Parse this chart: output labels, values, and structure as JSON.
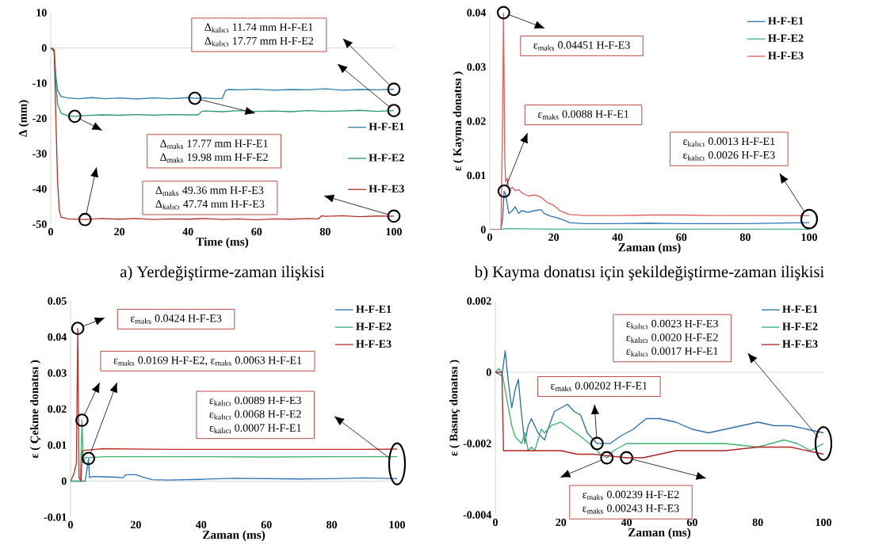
{
  "chart_data": [
    {
      "type": "line",
      "title": "a) Yerdeğiştirme-zaman ilişkisi",
      "xlabel": "Time (ms)",
      "ylabel": "Δ (mm)",
      "xlim": [
        0,
        100
      ],
      "ylim": [
        -50,
        10
      ],
      "xticks": [
        0,
        20,
        40,
        60,
        80,
        100
      ],
      "yticks": [
        -50,
        -40,
        -30,
        -20,
        -10,
        0,
        10
      ],
      "legend": "right",
      "ref_lines": [
        {
          "axis": "y",
          "value": 0,
          "color": "#d9d9d9"
        }
      ],
      "annotations": [
        "Δ$_{kalıcı}$ 11.74 mm H-F-E1",
        "Δ$_{kalıcı}$ 17.77 mm H-F-E2",
        "Δ$_{maks}$ 17.77 mm H-F-E1",
        "Δ$_{maks}$ 19.98 mm H-F-E2",
        "Δ$_{maks}$ 49.36 mm H-F-E3",
        "Δ$_{kalıcı}$ 47.74 mm H-F-E3"
      ],
      "series": [
        {
          "name": "H-F-E1",
          "color": "#2b83a8",
          "x": [
            0,
            1,
            1.5,
            2,
            3,
            5,
            8,
            12,
            16,
            20,
            25,
            30,
            35,
            40,
            42,
            45,
            48,
            50,
            51,
            52,
            55,
            60,
            65,
            70,
            75,
            80,
            85,
            90,
            95,
            100
          ],
          "values": [
            0,
            -1,
            -8,
            -12,
            -13.8,
            -14.2,
            -14.4,
            -14.1,
            -14.4,
            -14.2,
            -14.5,
            -14.2,
            -14.4,
            -14.1,
            -14.3,
            -14.2,
            -14.4,
            -14.3,
            -12.0,
            -11.8,
            -11.9,
            -11.7,
            -12.0,
            -11.8,
            -11.9,
            -11.6,
            -12.0,
            -11.8,
            -11.9,
            -11.74
          ]
        },
        {
          "name": "H-F-E2",
          "color": "#2a9d6a",
          "x": [
            0,
            1,
            1.5,
            2,
            3,
            5,
            7,
            10,
            15,
            20,
            25,
            30,
            35,
            40,
            43,
            44,
            45,
            50,
            55,
            60,
            65,
            70,
            75,
            80,
            85,
            90,
            95,
            100
          ],
          "values": [
            0,
            -0.5,
            -10,
            -16,
            -18.5,
            -19.3,
            -19.4,
            -19.2,
            -19.0,
            -19.1,
            -18.9,
            -19.1,
            -18.9,
            -19.0,
            -19.0,
            -18.0,
            -17.9,
            -18.1,
            -17.8,
            -18.0,
            -17.9,
            -18.1,
            -17.8,
            -18.0,
            -17.9,
            -17.7,
            -18.0,
            -17.77
          ]
        },
        {
          "name": "H-F-E3",
          "color": "#b5312b",
          "x": [
            0,
            1,
            1.5,
            2,
            2.5,
            3,
            5,
            10,
            15,
            20,
            25,
            30,
            35,
            40,
            45,
            50,
            55,
            60,
            65,
            70,
            75,
            78,
            79,
            80,
            85,
            90,
            95,
            100
          ],
          "values": [
            0,
            -0.5,
            -20,
            -38,
            -46,
            -48,
            -48.5,
            -48.7,
            -48.4,
            -48.6,
            -48.4,
            -48.7,
            -48.5,
            -48.6,
            -48.4,
            -48.7,
            -48.5,
            -48.8,
            -48.5,
            -48.6,
            -48.4,
            -48.5,
            -47.6,
            -47.8,
            -47.6,
            -47.9,
            -47.7,
            -47.74
          ]
        }
      ]
    },
    {
      "type": "line",
      "title": "b) Kayma donatısı için şekildeğiştirme-zaman ilişkisi",
      "xlabel": "Zaman (ms)",
      "ylabel": "ε ( Kayma donatısı )",
      "xlim": [
        0,
        100
      ],
      "ylim": [
        0,
        0.04
      ],
      "xticks": [
        0,
        20,
        40,
        60,
        80,
        100
      ],
      "yticks": [
        0,
        0.01,
        0.02,
        0.03,
        0.04
      ],
      "legend": "top right",
      "annotations": [
        "ε$_{maks}$ 0.04451 H-F-E3",
        "ε$_{maks}$ 0.0088 H-F-E1",
        "ε$_{kalıcı}$ 0.0013 H-F-E1",
        "ε$_{kalıcı}$ 0.0026 H-F-E3"
      ],
      "series": [
        {
          "name": "H-F-E1",
          "color": "#2e75b6",
          "x": [
            0,
            3.5,
            4,
            4.5,
            5,
            5.5,
            6,
            7,
            8,
            9,
            10,
            12,
            14,
            16,
            17,
            19,
            21,
            23,
            25,
            30,
            40,
            50,
            60,
            70,
            80,
            90,
            100
          ],
          "values": [
            0,
            0,
            0.002,
            0.0071,
            0.0065,
            0.0045,
            0.003,
            0.0035,
            0.0042,
            0.003,
            0.0035,
            0.0032,
            0.0035,
            0.0037,
            0.003,
            0.0025,
            0.0022,
            0.0018,
            0.0013,
            0.0011,
            0.0011,
            0.0012,
            0.0011,
            0.0011,
            0.0011,
            0.0012,
            0.0013
          ]
        },
        {
          "name": "H-F-E2",
          "color": "#43b58a",
          "x": [
            0,
            3.5,
            5,
            20,
            100
          ],
          "values": [
            0,
            0,
            0.0002,
            0.0001,
            0.0001
          ]
        },
        {
          "name": "H-F-E3",
          "color": "#e06060",
          "x": [
            0,
            3.5,
            4,
            4.3,
            4.7,
            5,
            5.5,
            6,
            7,
            8,
            9,
            10,
            12,
            14,
            16,
            18,
            20,
            22,
            25,
            30,
            40,
            50,
            60,
            70,
            80,
            90,
            100
          ],
          "values": [
            0,
            0,
            0.02,
            0.04,
            0.0127,
            0.0088,
            0.0095,
            0.0072,
            0.0078,
            0.0072,
            0.0074,
            0.0068,
            0.0062,
            0.0064,
            0.006,
            0.005,
            0.0045,
            0.0035,
            0.0028,
            0.0026,
            0.0026,
            0.0027,
            0.0027,
            0.0026,
            0.0026,
            0.0026,
            0.0026
          ]
        }
      ]
    },
    {
      "type": "line",
      "xlabel": "Zaman (ms)",
      "ylabel": "ε ( Çekme donatısı )",
      "xlim": [
        0,
        100
      ],
      "ylim": [
        -0.01,
        0.05
      ],
      "xticks": [
        0,
        20,
        40,
        60,
        80,
        100
      ],
      "yticks": [
        -0.01,
        0,
        0.01,
        0.02,
        0.03,
        0.04,
        0.05
      ],
      "legend": "top right",
      "ref_lines": [
        {
          "axis": "y",
          "value": 0,
          "color": "#d9d9d9"
        }
      ],
      "annotations": [
        "ε$_{maks}$ 0.0424 H-F-E3",
        "ε$_{maks}$ 0.0169 H-F-E2, ε$_{maks}$ 0.0063 H-F-E1",
        "ε$_{kalıcı}$ 0.0089 H-F-E3",
        "ε$_{kalıcı}$ 0.0068 H-F-E2",
        "ε$_{kalıcı}$ 0.0007 H-F-E1"
      ],
      "series": [
        {
          "name": "H-F-E1",
          "color": "#2e75b6",
          "x": [
            0,
            4.5,
            5,
            5.5,
            5.8,
            7,
            10,
            14,
            16,
            17,
            20,
            22,
            25,
            30,
            40,
            50,
            60,
            70,
            80,
            90,
            95,
            100
          ],
          "values": [
            0,
            0,
            0.003,
            0.0063,
            0.001,
            0.0013,
            0.0012,
            0.0011,
            0.0009,
            0.0018,
            0.0018,
            0.0012,
            0.0004,
            0.0003,
            0.0005,
            0.0008,
            0.0007,
            0.0006,
            0.0007,
            0.0009,
            0.0008,
            0.0007
          ]
        },
        {
          "name": "H-F-E2",
          "color": "#3cb371",
          "x": [
            0,
            3,
            3.3,
            3.5,
            3.9,
            4.5,
            6,
            10,
            20,
            40,
            60,
            80,
            100
          ],
          "values": [
            0,
            0,
            0.01,
            0.0169,
            0.005,
            0.0066,
            0.0065,
            0.0068,
            0.0068,
            0.0068,
            0.0067,
            0.0068,
            0.0068
          ]
        },
        {
          "name": "H-F-E3",
          "color": "#c0302b",
          "x": [
            0,
            1,
            1.8,
            2.2,
            2.6,
            3.2,
            3.6,
            6,
            10,
            20,
            30,
            40,
            50,
            60,
            70,
            80,
            90,
            100
          ],
          "values": [
            0,
            0.002,
            0.005,
            0.0424,
            0.001,
            0,
            0.0085,
            0.0087,
            0.009,
            0.0089,
            0.0088,
            0.0088,
            0.0088,
            0.0088,
            0.0088,
            0.0088,
            0.0088,
            0.0089
          ]
        }
      ]
    },
    {
      "type": "line",
      "xlabel": "Zaman (ms)",
      "ylabel": "ε ( Basınç donatısı )",
      "xlim": [
        0,
        100
      ],
      "ylim": [
        -0.004,
        0.002
      ],
      "xticks": [
        0,
        20,
        40,
        60,
        80,
        100
      ],
      "yticks": [
        -0.004,
        -0.002,
        0,
        0.002
      ],
      "legend": "top right",
      "ref_lines": [
        {
          "axis": "y",
          "value": 0,
          "color": "#d9d9d9"
        }
      ],
      "annotations": [
        "ε$_{kalıcı}$ 0.0023 H-F-E3",
        "ε$_{kalıcı}$ 0.0020 H-F-E2",
        "ε$_{kalıcı}$ 0.0017 H-F-E1",
        "ε$_{maks}$ 0.00202 H-F-E1",
        "ε$_{maks}$ 0.00239 H-F-E2",
        "ε$_{maks}$ 0.00243 H-F-E3"
      ],
      "series": [
        {
          "name": "H-F-E1",
          "color": "#2e6fa8",
          "x": [
            0,
            2,
            3,
            4,
            5,
            6,
            7,
            8,
            9,
            10,
            11,
            12,
            13,
            15,
            16,
            18,
            20,
            22,
            24,
            26,
            28,
            31,
            32,
            35,
            38,
            42,
            46,
            50,
            55,
            60,
            65,
            70,
            75,
            80,
            85,
            90,
            95,
            100
          ],
          "values": [
            0,
            -0.0001,
            0.0006,
            -0.0003,
            -0.001,
            -0.0005,
            -0.0002,
            -0.0012,
            -0.002,
            -0.0015,
            -0.0013,
            -0.0015,
            -0.0017,
            -0.0019,
            -0.0016,
            -0.0011,
            -0.001,
            -0.0009,
            -0.0011,
            -0.0012,
            -0.0017,
            -0.002,
            -0.002,
            -0.002,
            -0.0018,
            -0.0016,
            -0.0013,
            -0.0013,
            -0.0014,
            -0.0016,
            -0.0017,
            -0.0016,
            -0.0015,
            -0.0014,
            -0.0015,
            -0.0015,
            -0.0016,
            -0.0017
          ]
        },
        {
          "name": "H-F-E2",
          "color": "#3cb371",
          "x": [
            0,
            1,
            2,
            3,
            4,
            5,
            6,
            8,
            9,
            10,
            11,
            12,
            14,
            15,
            17,
            20,
            23,
            26,
            30,
            32,
            34,
            36,
            40,
            45,
            50,
            60,
            70,
            80,
            88,
            92,
            96,
            100
          ],
          "values": [
            0,
            0.0001,
            0,
            -0.0005,
            -0.001,
            -0.0015,
            -0.0018,
            -0.002,
            -0.0017,
            -0.0022,
            -0.0021,
            -0.0022,
            -0.0016,
            -0.0017,
            -0.0015,
            -0.0014,
            -0.0016,
            -0.0018,
            -0.0021,
            -0.0023,
            -0.0024,
            -0.0022,
            -0.002,
            -0.002,
            -0.002,
            -0.002,
            -0.002,
            -0.0021,
            -0.0019,
            -0.002,
            -0.0022,
            -0.002
          ]
        },
        {
          "name": "H-F-E3",
          "color": "#b22222",
          "x": [
            0,
            2,
            2.5,
            5,
            10,
            15,
            20,
            25,
            30,
            35,
            40,
            45,
            50,
            55,
            60,
            70,
            80,
            90,
            100
          ],
          "values": [
            0,
            0,
            -0.0022,
            -0.0022,
            -0.0022,
            -0.0022,
            -0.0022,
            -0.0023,
            -0.0023,
            -0.00235,
            -0.0024,
            -0.0024,
            -0.0023,
            -0.0022,
            -0.0022,
            -0.0022,
            -0.0021,
            -0.0021,
            -0.0023
          ]
        }
      ]
    }
  ]
}
